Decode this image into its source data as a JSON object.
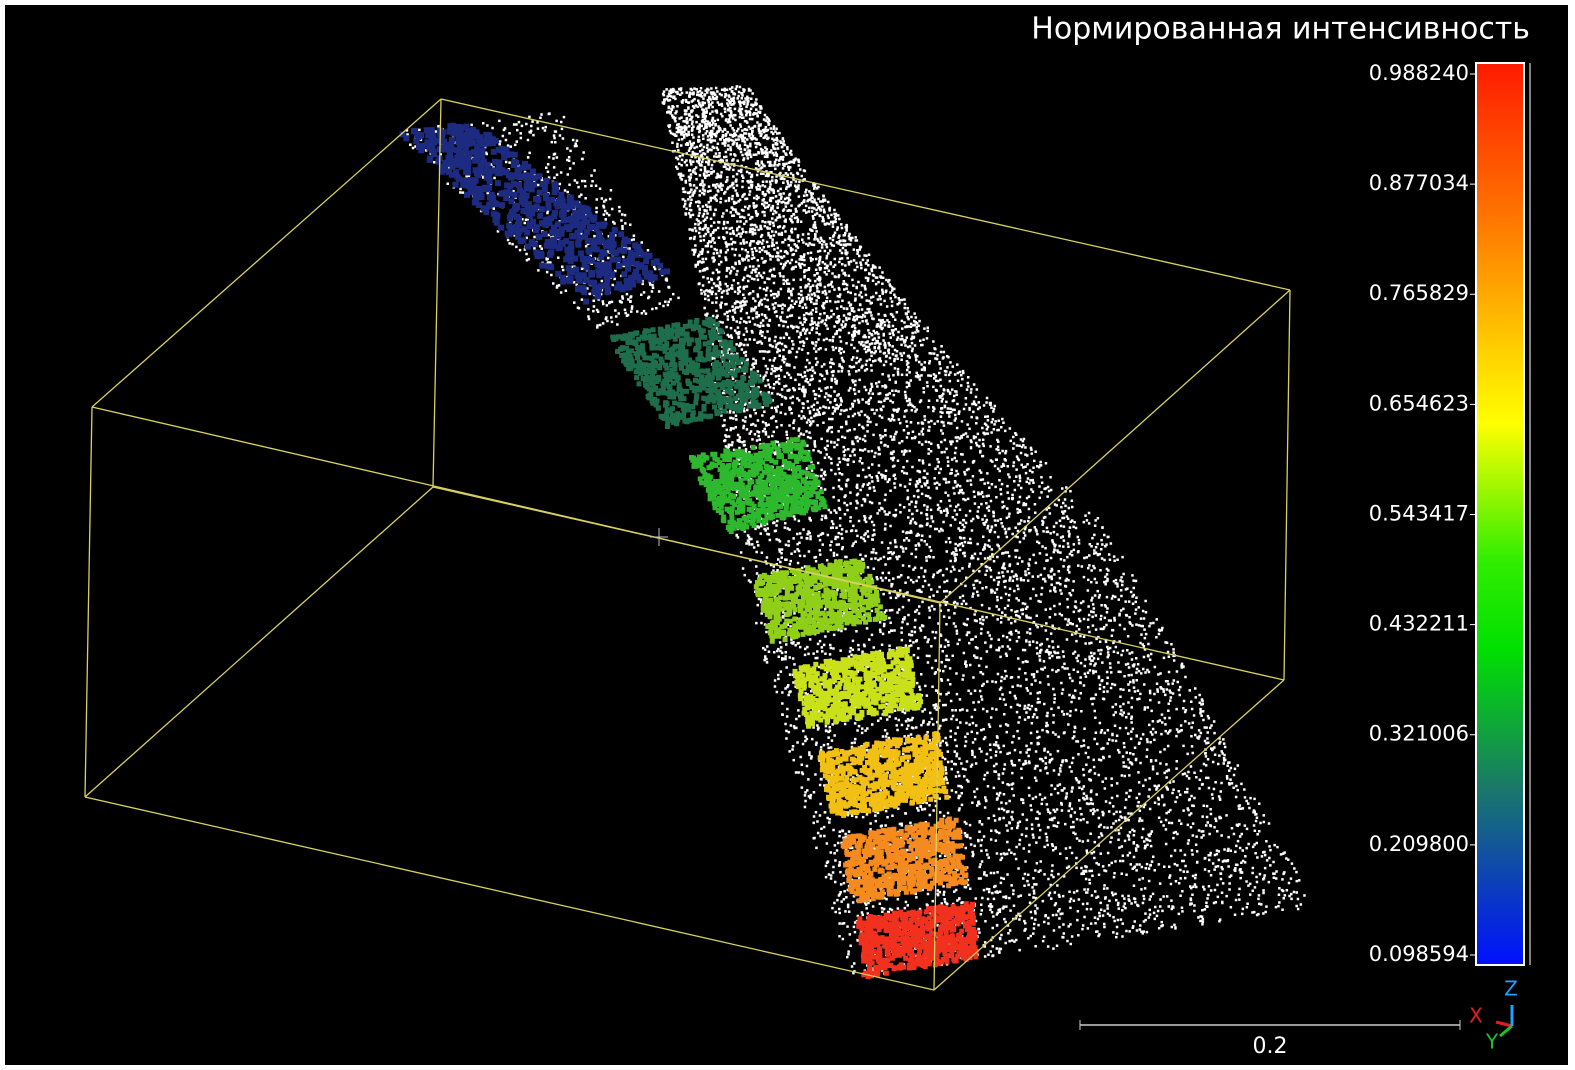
{
  "viewer": {
    "title": "Нормированная интенсивность",
    "colorbar": {
      "labels": [
        "0.988240",
        "0.877034",
        "0.765829",
        "0.654623",
        "0.543417",
        "0.432211",
        "0.321006",
        "0.209800",
        "0.098594"
      ]
    },
    "scale_label": "0.2",
    "axes": {
      "x": "X",
      "y": "Y",
      "z": "Z"
    }
  }
}
